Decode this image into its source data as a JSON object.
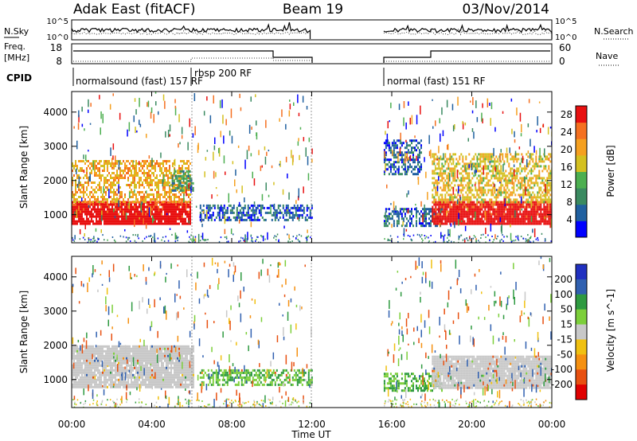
{
  "header": {
    "station": "Adak East (fitACF)",
    "beam": "Beam 19",
    "date": "03/Nov/2014"
  },
  "top_strips": {
    "nsky_label": "N.Sky",
    "nsky_ticks": [
      "10^5",
      "10^0"
    ],
    "nsearch_label": "N.Search",
    "nsearch_ticks": [
      "10^5",
      "10^0"
    ],
    "freq_label": "Freq.",
    "freq_unit": "[MHz]",
    "freq_ticks": [
      18,
      8
    ],
    "nave_label": "Nave",
    "nave_ticks": [
      60,
      0
    ],
    "cpid_label": "CPID",
    "cpid_segments": [
      {
        "label": "normalsound (fast) 157 RF",
        "start_h": 0,
        "end_h": 6
      },
      {
        "label": "rbsp 200 RF",
        "start_h": 6,
        "end_h": 12
      },
      {
        "label": "normal (fast) 151 RF",
        "start_h": 15.6,
        "end_h": 24
      }
    ]
  },
  "chart_data": [
    {
      "type": "heatmap",
      "panel": "power",
      "ylabel": "Slant Range [km]",
      "xlabel": "Time UT",
      "x_ticks": [
        "00:00",
        "04:00",
        "08:00",
        "12:00",
        "16:00",
        "20:00",
        "00:00"
      ],
      "xlim_hours": [
        0,
        24
      ],
      "y_ticks": [
        1000,
        2000,
        3000,
        4000
      ],
      "ylim": [
        180,
        4600
      ],
      "colorbar_label": "Power [dB]",
      "colorbar_ticks": [
        4,
        8,
        12,
        16,
        20,
        24,
        28
      ],
      "colorbar_range": [
        0,
        30
      ],
      "colorbar_colors": [
        "#0000ff",
        "#2060a0",
        "#3a8a60",
        "#4caf50",
        "#d4c020",
        "#f5a020",
        "#f57020",
        "#e81010"
      ],
      "data_gap_hours": [
        12.0,
        15.6
      ],
      "echo_regions": [
        {
          "t_start": 0,
          "t_end": 5.9,
          "range_min": 750,
          "range_max": 1400,
          "db": 28
        },
        {
          "t_start": 0,
          "t_end": 5.9,
          "range_min": 1400,
          "range_max": 2600,
          "db": 20
        },
        {
          "t_start": 5.0,
          "t_end": 6.1,
          "range_min": 1700,
          "range_max": 2300,
          "db": 10
        },
        {
          "t_start": 6.4,
          "t_end": 12.0,
          "range_min": 850,
          "range_max": 1300,
          "db": 5
        },
        {
          "t_start": 15.6,
          "t_end": 18.5,
          "range_min": 700,
          "range_max": 1200,
          "db": 6
        },
        {
          "t_start": 15.6,
          "t_end": 17.5,
          "range_min": 2200,
          "range_max": 3200,
          "db": 6
        },
        {
          "t_start": 18.0,
          "t_end": 24.0,
          "range_min": 750,
          "range_max": 1400,
          "db": 28
        },
        {
          "t_start": 18.0,
          "t_end": 24.0,
          "range_min": 1400,
          "range_max": 2800,
          "db": 18
        }
      ]
    },
    {
      "type": "heatmap",
      "panel": "velocity",
      "ylabel": "Slant Range [km]",
      "xlabel": "Time UT",
      "x_ticks": [
        "00:00",
        "04:00",
        "08:00",
        "12:00",
        "16:00",
        "20:00",
        "00:00"
      ],
      "xlim_hours": [
        0,
        24
      ],
      "y_ticks": [
        1000,
        2000,
        3000,
        4000
      ],
      "ylim": [
        180,
        4600
      ],
      "colorbar_label": "Velocity [m s^-1]",
      "colorbar_ticks": [
        200,
        100,
        50,
        15,
        -15,
        -50,
        -100,
        -200
      ],
      "colorbar_colors": [
        "#2030c0",
        "#3060b0",
        "#2e9a40",
        "#7ccf3a",
        "#c8c8c8",
        "#f0c010",
        "#f59010",
        "#e85010",
        "#e00000"
      ],
      "data_gap_hours": [
        12.0,
        15.6
      ],
      "echo_regions": [
        {
          "t_start": 0,
          "t_end": 6.1,
          "range_min": 750,
          "range_max": 2000,
          "v": 0
        },
        {
          "t_start": 6.4,
          "t_end": 12.0,
          "range_min": 850,
          "range_max": 1300,
          "v": 50
        },
        {
          "t_start": 15.6,
          "t_end": 18.5,
          "range_min": 700,
          "range_max": 1200,
          "v": 50
        },
        {
          "t_start": 18.0,
          "t_end": 24.0,
          "range_min": 750,
          "range_max": 1700,
          "v": 0
        }
      ]
    }
  ]
}
